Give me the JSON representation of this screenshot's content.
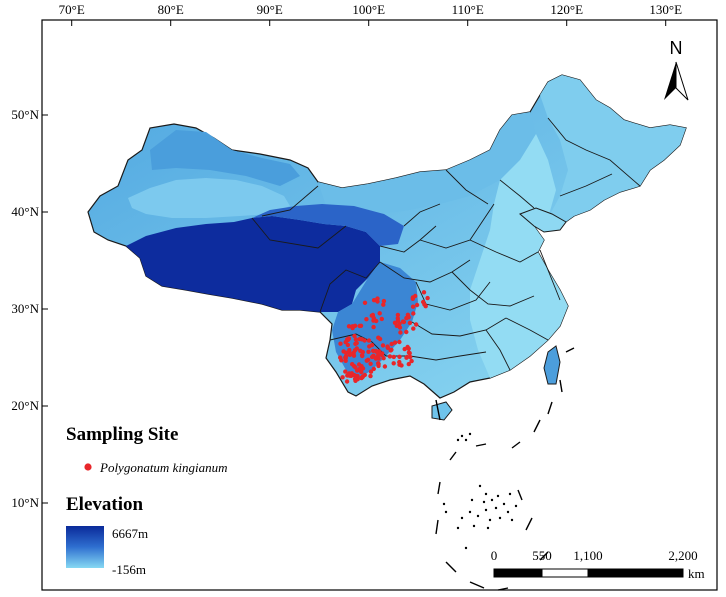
{
  "map": {
    "lon_ticks": [
      {
        "label": "70°E",
        "lon": 70
      },
      {
        "label": "80°E",
        "lon": 80
      },
      {
        "label": "90°E",
        "lon": 90
      },
      {
        "label": "100°E",
        "lon": 100
      },
      {
        "label": "110°E",
        "lon": 110
      },
      {
        "label": "120°E",
        "lon": 120
      },
      {
        "label": "130°E",
        "lon": 130
      }
    ],
    "lat_ticks": [
      {
        "label": "50°N",
        "lat": 50
      },
      {
        "label": "40°N",
        "lat": 40
      },
      {
        "label": "30°N",
        "lat": 30
      },
      {
        "label": "20°N",
        "lat": 20
      },
      {
        "label": "10°N",
        "lat": 10
      }
    ],
    "north_arrow": {
      "letter": "N",
      "icon": "north-arrow-icon"
    },
    "legend": {
      "sampling_title": "Sampling Site",
      "species": "Polygonatum kingianum",
      "marker_color": "#e8262a",
      "elevation_title": "Elevation",
      "elev_max": "6667m",
      "elev_min": "-156m",
      "ramp_colors": [
        "#0a2a9a",
        "#2f6fd0",
        "#7fd2f0"
      ]
    },
    "scale_bar": {
      "labels": [
        "0",
        "550",
        "1,100",
        "2,200"
      ],
      "unit": "km"
    },
    "colors": {
      "plateau": "#0d2c9e",
      "high": "#2b64c8",
      "mid": "#3d8fd8",
      "low": "#6cc0ea",
      "lowland": "#92dcf2",
      "boundary": "#1a1a1a"
    }
  }
}
